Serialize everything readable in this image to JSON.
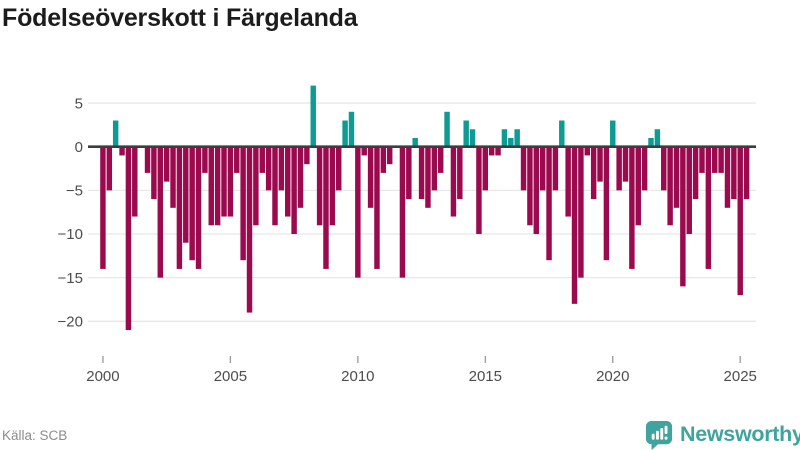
{
  "header": {
    "title": "Födelseöverskott i Färgelanda"
  },
  "footer": {
    "source": "Källa: SCB",
    "brand": "Newsworthy"
  },
  "colors": {
    "positive_bar": "#0e9b93",
    "negative_bar": "#9b0a4e",
    "zero_line": "#3d3d3d",
    "gridline": "#e8e8e8",
    "axis_text": "#4d4d4d",
    "tick_mark": "#999999",
    "title_text": "#1c1c1c",
    "source_text": "#8c8c8c",
    "brand_teal": "#3ea49d"
  },
  "chart_data": {
    "type": "bar",
    "title": "Födelseöverskott i Färgelanda",
    "xlabel": "",
    "ylabel": "",
    "frequency": "quarterly",
    "start_period": "2000-Q1",
    "end_period": "2025-Q2",
    "grid": true,
    "legend": "none",
    "ylim": [
      -22.5,
      8
    ],
    "yticks": [
      {
        "value": 5,
        "label": "5"
      },
      {
        "value": 0,
        "label": "0"
      },
      {
        "value": -5,
        "label": "−5"
      },
      {
        "value": -10,
        "label": "−10"
      },
      {
        "value": -15,
        "label": "−15"
      },
      {
        "value": -20,
        "label": "−20"
      }
    ],
    "xticks": [
      {
        "year": 2000,
        "label": "2000"
      },
      {
        "year": 2005,
        "label": "2005"
      },
      {
        "year": 2010,
        "label": "2010"
      },
      {
        "year": 2015,
        "label": "2015"
      },
      {
        "year": 2020,
        "label": "2020"
      },
      {
        "year": 2025,
        "label": "2025"
      }
    ],
    "values": [
      -14,
      -5,
      3,
      -1,
      -21,
      -8,
      0,
      -3,
      -6,
      -15,
      -4,
      -7,
      -14,
      -11,
      -13,
      -14,
      -3,
      -9,
      -9,
      -8,
      -8,
      -3,
      -13,
      -19,
      -9,
      -3,
      -5,
      -9,
      -5,
      -8,
      -10,
      -7,
      -2,
      7,
      -9,
      -14,
      -9,
      -5,
      3,
      4,
      -15,
      -1,
      -7,
      -14,
      -3,
      -2,
      0,
      -15,
      -6,
      1,
      -6,
      -7,
      -5,
      -3,
      4,
      -8,
      -6,
      3,
      2,
      -10,
      -5,
      -1,
      -1,
      2,
      1,
      2,
      -5,
      -9,
      -10,
      -5,
      -13,
      -5,
      3,
      -8,
      -18,
      -15,
      -1,
      -6,
      -4,
      -13,
      3,
      -5,
      -4,
      -14,
      -9,
      -5,
      1,
      2,
      -5,
      -9,
      -7,
      -16,
      -10,
      -6,
      -3,
      -14,
      -3,
      -3,
      -7,
      -6,
      -17,
      -6
    ]
  }
}
